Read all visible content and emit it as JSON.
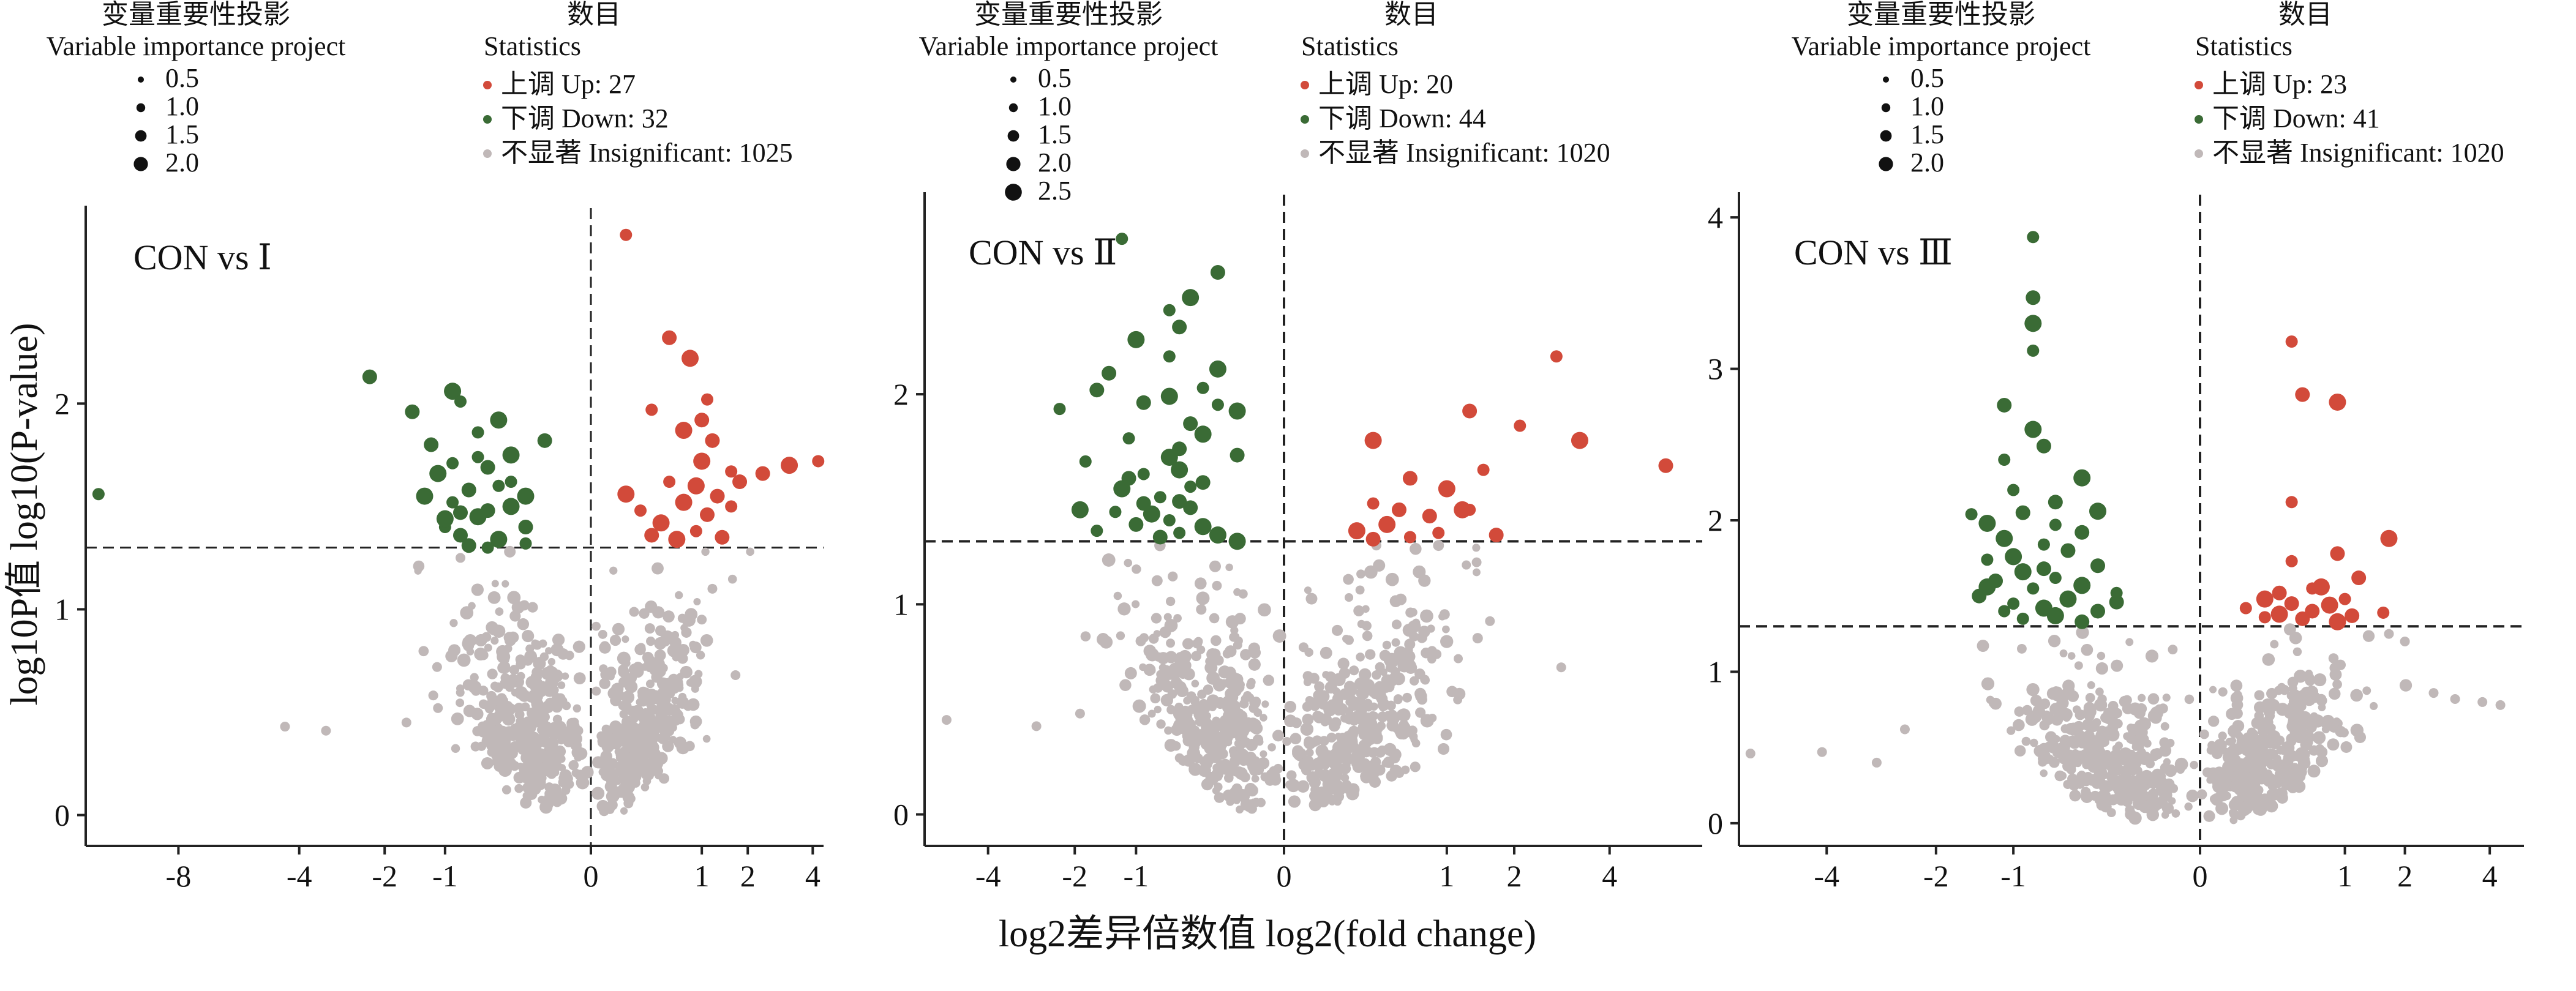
{
  "figure": {
    "ylabel": "log10P值 log10(P-value)",
    "xlabel": "log2差异倍数值 log2(fold change)",
    "colors": {
      "up": "#d24a3a",
      "down": "#3a6b35",
      "insignificant": "#c0b8b8"
    },
    "legend_vip_title_cn": "变量重要性投影",
    "legend_vip_title_en": "Variable importance project",
    "legend_stats_title_cn": "数目",
    "legend_stats_title_en": "Statistics",
    "legend_up_cn": "上调",
    "legend_down_cn": "下调",
    "legend_insig_cn": "不显著"
  },
  "chart_data": [
    {
      "type": "scatter",
      "title": "CON vs Ⅰ",
      "xlabel": "log2差异倍数值 log2(fold change)",
      "ylabel": "log10P值 log10(P-value)",
      "xlim": [
        -12,
        4.4
      ],
      "ylim": [
        -0.15,
        2.95
      ],
      "x_ticks": [
        -8,
        -4,
        -2,
        -1,
        0,
        1,
        2,
        4
      ],
      "x_tick_labels": [
        "-8",
        "-4",
        "-2",
        "-1",
        "0",
        "1",
        "2",
        "4"
      ],
      "y_ticks": [
        0,
        1,
        2
      ],
      "threshold_y": 1.3,
      "threshold_x": 0,
      "vip_sizes": [
        "0.5",
        "1.0",
        "1.5",
        "2.0"
      ],
      "legend_up": "Up: 27",
      "legend_down": "Down: 32",
      "legend_insig": "Insignificant: 1025",
      "up": [
        [
          0.1,
          2.82
        ],
        [
          0.5,
          2.32
        ],
        [
          0.8,
          2.22
        ],
        [
          1.1,
          2.02
        ],
        [
          1.0,
          1.92
        ],
        [
          0.7,
          1.87
        ],
        [
          0.3,
          1.97
        ],
        [
          1.2,
          1.82
        ],
        [
          1.0,
          1.72
        ],
        [
          1.6,
          1.67
        ],
        [
          2.4,
          1.66
        ],
        [
          3.2,
          1.7
        ],
        [
          4.2,
          1.72
        ],
        [
          1.8,
          1.62
        ],
        [
          0.9,
          1.6
        ],
        [
          0.5,
          1.62
        ],
        [
          1.3,
          1.55
        ],
        [
          0.7,
          1.52
        ],
        [
          1.6,
          1.5
        ],
        [
          1.1,
          1.46
        ],
        [
          0.4,
          1.42
        ],
        [
          0.9,
          1.38
        ],
        [
          1.4,
          1.35
        ],
        [
          0.6,
          1.34
        ],
        [
          0.2,
          1.48
        ],
        [
          0.3,
          1.36
        ],
        [
          0.1,
          1.56
        ]
      ],
      "down": [
        [
          -11.4,
          1.56
        ],
        [
          -2.3,
          2.13
        ],
        [
          -0.9,
          2.06
        ],
        [
          -0.8,
          2.01
        ],
        [
          -1.5,
          1.96
        ],
        [
          -0.4,
          1.92
        ],
        [
          -0.6,
          1.86
        ],
        [
          -1.2,
          1.8
        ],
        [
          -0.3,
          1.75
        ],
        [
          -0.9,
          1.71
        ],
        [
          -0.5,
          1.69
        ],
        [
          -1.1,
          1.66
        ],
        [
          -0.3,
          1.62
        ],
        [
          -0.7,
          1.58
        ],
        [
          -1.3,
          1.55
        ],
        [
          -0.9,
          1.52
        ],
        [
          -0.5,
          1.48
        ],
        [
          -0.6,
          1.45
        ],
        [
          -1.0,
          1.4
        ],
        [
          -0.8,
          1.36
        ],
        [
          -0.4,
          1.34
        ],
        [
          -0.2,
          1.32
        ],
        [
          -0.7,
          1.31
        ],
        [
          -0.3,
          1.5
        ],
        [
          -0.5,
          1.3
        ],
        [
          -0.2,
          1.4
        ],
        [
          -1.0,
          1.44
        ],
        [
          -0.4,
          1.6
        ],
        [
          -0.1,
          1.82
        ],
        [
          -0.2,
          1.55
        ],
        [
          -0.6,
          1.74
        ],
        [
          -0.8,
          1.47
        ]
      ],
      "insig_sample": [
        [
          -4.4,
          0.43
        ],
        [
          -3.3,
          0.41
        ],
        [
          -1.6,
          0.45
        ],
        [
          -1.1,
          0.52
        ],
        [
          1.7,
          0.68
        ],
        [
          1.0,
          0.95
        ],
        [
          -0.8,
          1.25
        ],
        [
          1.2,
          1.1
        ]
      ]
    },
    {
      "type": "scatter",
      "title": "CON vs Ⅱ",
      "xlabel": "log2差异倍数值 log2(fold change)",
      "ylabel": "log10P值 log10(P-value)",
      "xlim": [
        -5.9,
        6.6
      ],
      "ylim": [
        -0.15,
        2.95
      ],
      "x_ticks": [
        -4,
        -2,
        -1,
        0,
        1,
        2,
        4
      ],
      "x_tick_labels": [
        "-4",
        "-2",
        "-1",
        "0",
        "1",
        "2",
        "4"
      ],
      "y_ticks": [
        0,
        1,
        2
      ],
      "threshold_y": 1.3,
      "threshold_x": 0,
      "vip_sizes": [
        "0.5",
        "1.0",
        "1.5",
        "2.0",
        "2.5"
      ],
      "legend_up": "Up: 20",
      "legend_down": "Down: 44",
      "legend_insig": "Insignificant: 1020",
      "up": [
        [
          2.8,
          2.18
        ],
        [
          5.5,
          1.66
        ],
        [
          3.3,
          1.78
        ],
        [
          2.1,
          1.85
        ],
        [
          1.3,
          1.92
        ],
        [
          0.3,
          1.78
        ],
        [
          1.5,
          1.64
        ],
        [
          0.6,
          1.6
        ],
        [
          1.0,
          1.55
        ],
        [
          0.3,
          1.48
        ],
        [
          0.5,
          1.45
        ],
        [
          1.2,
          1.45
        ],
        [
          1.3,
          1.45
        ],
        [
          0.8,
          1.42
        ],
        [
          0.4,
          1.38
        ],
        [
          0.9,
          1.34
        ],
        [
          1.7,
          1.33
        ],
        [
          0.2,
          1.35
        ],
        [
          0.6,
          1.32
        ],
        [
          0.3,
          1.31
        ]
      ],
      "down": [
        [
          -1.2,
          2.74
        ],
        [
          -0.2,
          2.58
        ],
        [
          -0.4,
          2.46
        ],
        [
          -0.6,
          2.4
        ],
        [
          -0.5,
          2.32
        ],
        [
          -1.0,
          2.26
        ],
        [
          -0.6,
          2.18
        ],
        [
          -1.4,
          2.1
        ],
        [
          -0.2,
          2.12
        ],
        [
          -0.3,
          2.03
        ],
        [
          -1.6,
          2.02
        ],
        [
          -0.6,
          1.99
        ],
        [
          -0.2,
          1.95
        ],
        [
          -0.9,
          1.96
        ],
        [
          -0.1,
          1.92
        ],
        [
          -2.3,
          1.93
        ],
        [
          -0.4,
          1.86
        ],
        [
          -0.3,
          1.81
        ],
        [
          -1.1,
          1.79
        ],
        [
          -0.5,
          1.74
        ],
        [
          -0.6,
          1.7
        ],
        [
          -1.8,
          1.68
        ],
        [
          -0.1,
          1.71
        ],
        [
          -0.5,
          1.64
        ],
        [
          -0.9,
          1.62
        ],
        [
          -0.3,
          1.58
        ],
        [
          -1.2,
          1.55
        ],
        [
          -0.7,
          1.51
        ],
        [
          -0.5,
          1.49
        ],
        [
          -1.9,
          1.45
        ],
        [
          -1.3,
          1.44
        ],
        [
          -0.4,
          1.46
        ],
        [
          -0.8,
          1.43
        ],
        [
          -0.6,
          1.4
        ],
        [
          -1.0,
          1.38
        ],
        [
          -0.3,
          1.37
        ],
        [
          -0.5,
          1.34
        ],
        [
          -0.7,
          1.32
        ],
        [
          -0.2,
          1.33
        ],
        [
          -1.6,
          1.35
        ],
        [
          -0.9,
          1.48
        ],
        [
          -0.1,
          1.3
        ],
        [
          -0.4,
          1.56
        ],
        [
          -1.1,
          1.6
        ]
      ],
      "insig_sample": [
        [
          -5.2,
          0.45
        ],
        [
          -2.8,
          0.42
        ],
        [
          -1.9,
          0.48
        ],
        [
          1.6,
          0.92
        ],
        [
          2.9,
          0.7
        ],
        [
          1.4,
          1.2
        ]
      ]
    },
    {
      "type": "scatter",
      "title": "CON vs Ⅲ",
      "xlabel": "log2差异倍数值 log2(fold change)",
      "ylabel": "log10P值 log10(P-value)",
      "xlim": [
        -6.1,
        5.0
      ],
      "ylim": [
        -0.15,
        4.15
      ],
      "x_ticks": [
        -4,
        -2,
        -1,
        0,
        1,
        2,
        4
      ],
      "x_tick_labels": [
        "-4",
        "-2",
        "-1",
        "0",
        "1",
        "2",
        "4"
      ],
      "y_ticks": [
        0,
        1,
        2,
        3,
        4
      ],
      "threshold_y": 1.3,
      "threshold_x": 0,
      "vip_sizes": [
        "0.5",
        "1.0",
        "1.5",
        "2.0"
      ],
      "legend_up": "Up: 23",
      "legend_down": "Down: 41",
      "legend_insig": "Insignificant: 1020",
      "up": [
        [
          0.4,
          3.18
        ],
        [
          0.5,
          2.83
        ],
        [
          0.9,
          2.78
        ],
        [
          0.4,
          2.12
        ],
        [
          0.9,
          1.78
        ],
        [
          1.7,
          1.88
        ],
        [
          0.4,
          1.73
        ],
        [
          1.2,
          1.62
        ],
        [
          0.7,
          1.56
        ],
        [
          0.6,
          1.55
        ],
        [
          0.3,
          1.52
        ],
        [
          0.2,
          1.48
        ],
        [
          1.0,
          1.48
        ],
        [
          0.4,
          1.45
        ],
        [
          0.8,
          1.44
        ],
        [
          0.1,
          1.42
        ],
        [
          0.6,
          1.4
        ],
        [
          0.3,
          1.38
        ],
        [
          1.6,
          1.39
        ],
        [
          0.5,
          1.35
        ],
        [
          0.9,
          1.33
        ],
        [
          0.2,
          1.36
        ],
        [
          1.1,
          1.37
        ]
      ],
      "down": [
        [
          -0.8,
          3.87
        ],
        [
          -0.8,
          3.47
        ],
        [
          -0.8,
          3.3
        ],
        [
          -0.8,
          3.12
        ],
        [
          -1.1,
          2.76
        ],
        [
          -0.8,
          2.6
        ],
        [
          -1.1,
          2.4
        ],
        [
          -0.7,
          2.49
        ],
        [
          -0.4,
          2.28
        ],
        [
          -1.0,
          2.2
        ],
        [
          -0.6,
          2.12
        ],
        [
          -0.3,
          2.06
        ],
        [
          -1.5,
          2.04
        ],
        [
          -0.9,
          2.05
        ],
        [
          -1.3,
          1.98
        ],
        [
          -0.6,
          1.97
        ],
        [
          -0.4,
          1.92
        ],
        [
          -1.1,
          1.88
        ],
        [
          -0.7,
          1.84
        ],
        [
          -0.5,
          1.8
        ],
        [
          -1.0,
          1.76
        ],
        [
          -1.3,
          1.74
        ],
        [
          -0.3,
          1.7
        ],
        [
          -0.9,
          1.66
        ],
        [
          -0.6,
          1.62
        ],
        [
          -1.2,
          1.6
        ],
        [
          -0.4,
          1.57
        ],
        [
          -0.8,
          1.55
        ],
        [
          -1.4,
          1.5
        ],
        [
          -0.5,
          1.48
        ],
        [
          -1.0,
          1.45
        ],
        [
          -0.2,
          1.46
        ],
        [
          -0.7,
          1.42
        ],
        [
          -1.1,
          1.4
        ],
        [
          -0.3,
          1.4
        ],
        [
          -0.6,
          1.37
        ],
        [
          -0.9,
          1.35
        ],
        [
          -0.4,
          1.33
        ],
        [
          -1.3,
          1.56
        ],
        [
          -0.2,
          1.52
        ],
        [
          -0.7,
          1.68
        ]
      ],
      "insig_sample": [
        [
          -5.8,
          0.46
        ],
        [
          -4.1,
          0.47
        ],
        [
          -3.0,
          0.4
        ],
        [
          -2.5,
          0.62
        ],
        [
          2.0,
          1.2
        ],
        [
          2.6,
          0.86
        ],
        [
          3.1,
          0.82
        ],
        [
          3.8,
          0.8
        ],
        [
          4.3,
          0.78
        ],
        [
          1.7,
          1.25
        ]
      ]
    }
  ]
}
